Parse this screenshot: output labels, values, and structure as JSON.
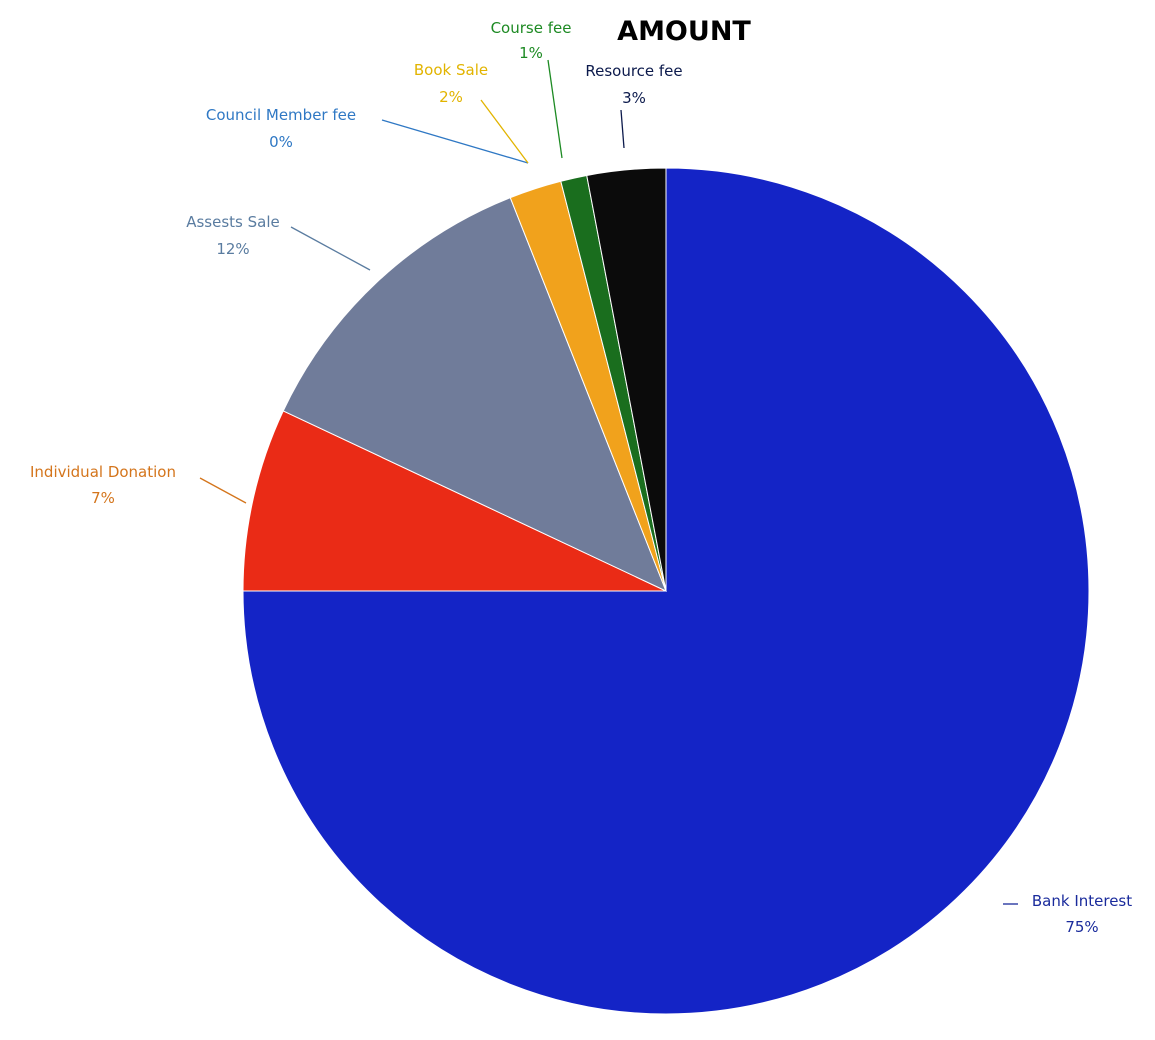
{
  "chart_data": {
    "type": "pie",
    "title": "AMOUNT",
    "start_angle_deg": 0,
    "direction": "clockwise",
    "slices": [
      {
        "category": "Bank Interest",
        "value": 75,
        "label": "75%",
        "color": "#1424c6",
        "label_color": "#1a2b9c"
      },
      {
        "category": "Individual Donation",
        "value": 7,
        "label": "7%",
        "color": "#ea2b16",
        "label_color": "#d4751c"
      },
      {
        "category": "Assests Sale",
        "value": 12,
        "label": "12%",
        "color": "#707c9a",
        "label_color": "#5a7ca0"
      },
      {
        "category": "Council Member fee",
        "value": 0,
        "label": "0%",
        "color": "#2f78c4",
        "label_color": "#2f78c4"
      },
      {
        "category": "Book Sale",
        "value": 2,
        "label": "2%",
        "color": "#f1a21c",
        "label_color": "#e2b400"
      },
      {
        "category": "Course fee",
        "value": 1,
        "label": "1%",
        "color": "#1a6e1e",
        "label_color": "#1d8a23"
      },
      {
        "category": "Resource fee",
        "value": 3,
        "label": "3%",
        "color": "#0b0b0b",
        "label_color": "#0c1a4c"
      }
    ],
    "legend": "none"
  }
}
